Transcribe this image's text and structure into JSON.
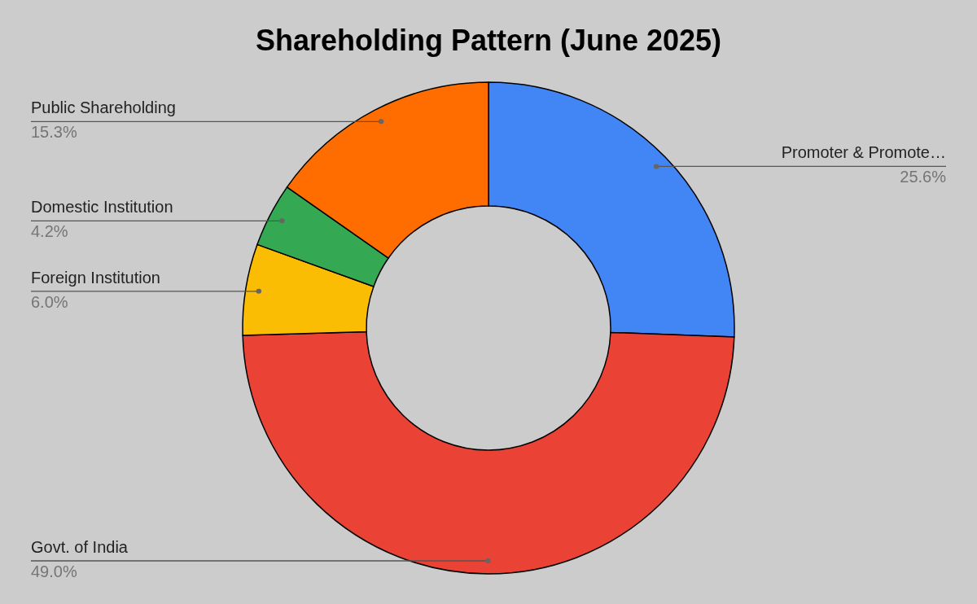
{
  "chart_data": {
    "type": "donut",
    "title": "Shareholding Pattern (June 2025)",
    "categories": [
      "Promoter & Promote…",
      "Govt. of India",
      "Foreign Institution",
      "Domestic Institution",
      "Public Shareholding"
    ],
    "values": [
      25.6,
      49.0,
      6.0,
      4.2,
      15.3
    ],
    "colors": [
      "#4285f4",
      "#ea4335",
      "#fbbc04",
      "#34a853",
      "#ff6d01"
    ],
    "value_labels": [
      "25.6%",
      "49.0%",
      "6.0%",
      "4.2%",
      "15.3%"
    ]
  }
}
